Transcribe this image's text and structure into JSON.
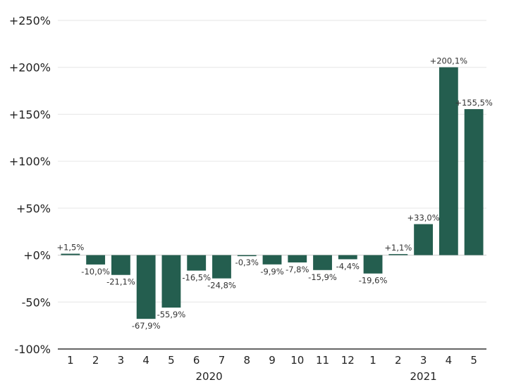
{
  "chart_data": {
    "type": "bar",
    "title": "",
    "xlabel": "",
    "ylabel": "",
    "categories": [
      "1",
      "2",
      "3",
      "4",
      "5",
      "6",
      "7",
      "8",
      "9",
      "10",
      "11",
      "12",
      "1",
      "2",
      "3",
      "4",
      "5"
    ],
    "years": [
      {
        "label": "2020",
        "start": 0,
        "end": 11
      },
      {
        "label": "2021",
        "start": 12,
        "end": 16
      }
    ],
    "values": [
      1.5,
      -10.0,
      -21.1,
      -67.9,
      -55.9,
      -16.5,
      -24.8,
      -0.3,
      -9.9,
      -7.8,
      -15.9,
      -4.4,
      -19.6,
      1.1,
      33.0,
      200.1,
      155.5
    ],
    "value_labels": [
      "+1,5%",
      "-10,0%",
      "-21,1%",
      "-67,9%",
      "-55,9%",
      "-16,5%",
      "-24,8%",
      "-0,3%",
      "-9,9%",
      "-7,8%",
      "-15,9%",
      "-4,4%",
      "-19,6%",
      "+1,1%",
      "+33,0%",
      "+200,1%",
      "+155,5%"
    ],
    "yticks": [
      -100,
      -50,
      0,
      50,
      100,
      150,
      200,
      250
    ],
    "ytick_labels": [
      "-100%",
      "-50%",
      "+0%",
      "+50%",
      "+100%",
      "+150%",
      "+200%",
      "+250%"
    ],
    "ylim": [
      -100,
      250
    ],
    "grid": true,
    "legend": "none",
    "colors": {
      "bar": "#245e4f",
      "grid": "#e6e6e6",
      "zero_line": "#cccccc",
      "axis": "#333333"
    }
  }
}
